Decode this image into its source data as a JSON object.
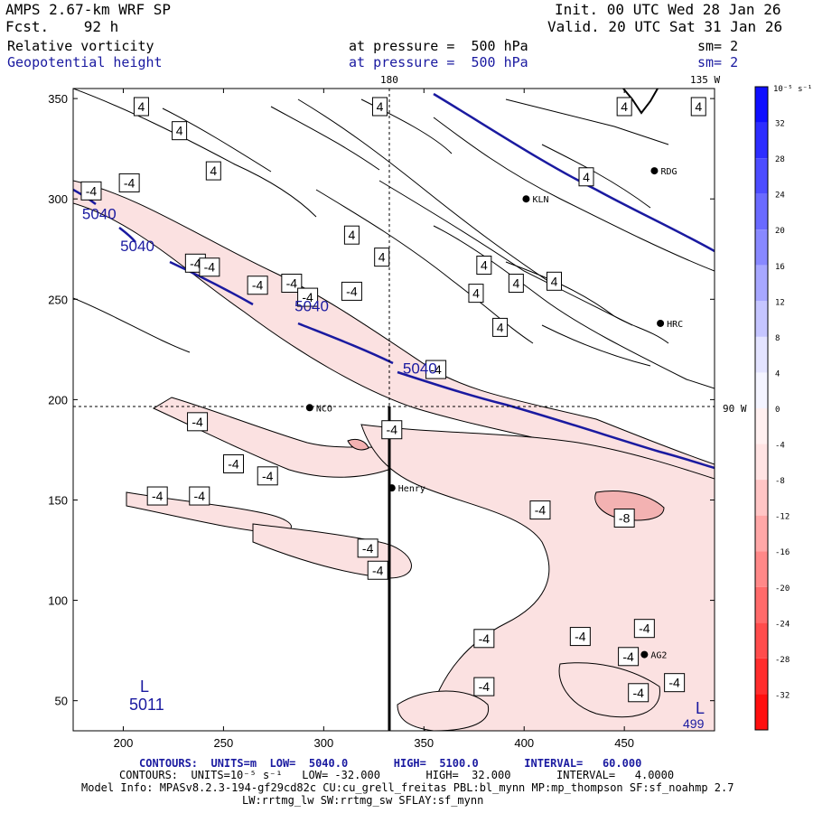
{
  "header": {
    "model": "AMPS 2.67-km WRF SP",
    "forecast": "Fcst.    92 h",
    "init": "Init. 00 UTC Wed 28 Jan 26",
    "valid": "Valid. 20 UTC Sat 31 Jan 26",
    "field1": "Relative vorticity",
    "field1_level": "at pressure =  500 hPa",
    "field1_sm": "sm= 2",
    "field2": "Geopotential height",
    "field2_level": "at pressure =  500 hPa",
    "field2_sm": "sm= 2"
  },
  "map": {
    "lon_top_1": "180",
    "lon_top_2": "135 W",
    "lon_right": "90 W",
    "x_ticks": [
      "200",
      "250",
      "300",
      "350",
      "400",
      "450"
    ],
    "y_ticks": [
      "350",
      "300",
      "250",
      "200",
      "150",
      "100",
      "50"
    ],
    "stations": [
      {
        "name": "RDG",
        "x": 465,
        "y": 314
      },
      {
        "name": "KLN",
        "x": 401,
        "y": 300
      },
      {
        "name": "HRC",
        "x": 468,
        "y": 238
      },
      {
        "name": "NCO",
        "x": 293,
        "y": 196
      },
      {
        "name": "Henry",
        "x": 334,
        "y": 156
      },
      {
        "name": "AG2",
        "x": 460,
        "y": 73
      }
    ],
    "height_labels": [
      {
        "text": "5040",
        "x": 188,
        "y": 290
      },
      {
        "name": "b",
        "text": "5040",
        "x": 207,
        "y": 274
      },
      {
        "text": "5040",
        "x": 294,
        "y": 244
      },
      {
        "text": "5040",
        "x": 348,
        "y": 213
      }
    ],
    "low_label": "L",
    "low_value": "5011",
    "low_label_2": "L",
    "low_value_2": "499",
    "vort_labels": [
      {
        "text": "4",
        "x": 209,
        "y": 346
      },
      {
        "text": "4",
        "x": 228,
        "y": 334
      },
      {
        "text": "4",
        "x": 245,
        "y": 314
      },
      {
        "text": "4",
        "x": 328,
        "y": 346
      },
      {
        "text": "4",
        "x": 450,
        "y": 346
      },
      {
        "text": "4",
        "x": 487,
        "y": 346
      },
      {
        "text": "4",
        "x": 431,
        "y": 311
      },
      {
        "text": "4",
        "x": 314,
        "y": 282
      },
      {
        "text": "4",
        "x": 329,
        "y": 271
      },
      {
        "text": "4",
        "x": 380,
        "y": 267
      },
      {
        "text": "4",
        "x": 396,
        "y": 258
      },
      {
        "text": "4",
        "x": 415,
        "y": 259
      },
      {
        "text": "4",
        "x": 376,
        "y": 253
      },
      {
        "text": "4",
        "x": 388,
        "y": 236
      },
      {
        "text": "-4",
        "x": 184,
        "y": 304
      },
      {
        "text": "-4",
        "x": 203,
        "y": 308
      },
      {
        "text": "-4",
        "x": 236,
        "y": 268
      },
      {
        "text": "-4",
        "x": 243,
        "y": 266
      },
      {
        "text": "-4",
        "x": 267,
        "y": 257
      },
      {
        "text": "-4",
        "x": 284,
        "y": 258
      },
      {
        "text": "-4",
        "x": 292,
        "y": 251
      },
      {
        "text": "-4",
        "x": 314,
        "y": 254
      },
      {
        "text": "-4",
        "x": 356,
        "y": 215
      },
      {
        "text": "-4",
        "x": 237,
        "y": 189
      },
      {
        "text": "-4",
        "x": 255,
        "y": 168
      },
      {
        "text": "-4",
        "x": 272,
        "y": 162
      },
      {
        "text": "-4",
        "x": 334,
        "y": 185
      },
      {
        "text": "-4",
        "x": 217,
        "y": 152
      },
      {
        "text": "-4",
        "x": 238,
        "y": 152
      },
      {
        "text": "-4",
        "x": 408,
        "y": 145
      },
      {
        "text": "-8",
        "x": 450,
        "y": 141
      },
      {
        "text": "-4",
        "x": 322,
        "y": 126
      },
      {
        "text": "-4",
        "x": 327,
        "y": 115
      },
      {
        "text": "-4",
        "x": 380,
        "y": 81
      },
      {
        "text": "-4",
        "x": 428,
        "y": 82
      },
      {
        "text": "-4",
        "x": 460,
        "y": 86
      },
      {
        "text": "-4",
        "x": 452,
        "y": 72
      },
      {
        "text": "-4",
        "x": 380,
        "y": 57
      },
      {
        "text": "-4",
        "x": 475,
        "y": 59
      },
      {
        "text": "-4",
        "x": 457,
        "y": 54
      }
    ]
  },
  "colorbar": {
    "unit": "10⁻⁵ s⁻¹",
    "labels": [
      "32",
      "28",
      "24",
      "20",
      "16",
      "12",
      "8",
      "4",
      "0",
      "-4",
      "-8",
      "-12",
      "-16",
      "-20",
      "-24",
      "-28",
      "-32"
    ],
    "levels": [
      36,
      32,
      28,
      24,
      20,
      16,
      12,
      8,
      4,
      0,
      -4,
      -8,
      -12,
      -16,
      -20,
      -24,
      -28,
      -32,
      -36
    ]
  },
  "footer": {
    "line1": "CONTOURS:  UNITS=m  LOW=  5040.0       HIGH=  5100.0       INTERVAL=   60.000",
    "line2": "CONTOURS:  UNITS=10⁻⁵ s⁻¹   LOW= -32.000       HIGH=  32.000       INTERVAL=   4.0000",
    "line3": "Model Info: MPASv8.2.3-194-gf29cd82c CU:cu_grell_freitas PBL:bl_mynn MP:mp_thompson SF:sf_noahmp 2.7",
    "line4": "LW:rrtmg_lw SW:rrtmg_sw SFLAY:sf_mynn"
  },
  "colors": {
    "height_contour": "#1a1aa0",
    "neg_fill": "#fbe1e1",
    "neg_fill_strong": "#f3b2b2"
  }
}
